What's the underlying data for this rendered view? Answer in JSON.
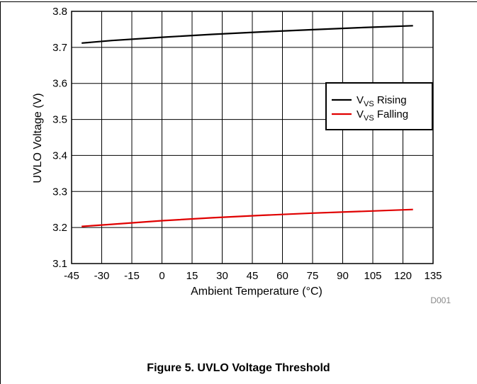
{
  "chart_data": {
    "type": "line",
    "xlabel": "Ambient Temperature (°C)",
    "ylabel": "UVLO Voltage (V)",
    "xlim": [
      -45,
      135
    ],
    "ylim": [
      3.1,
      3.8
    ],
    "xticks": [
      -45,
      -30,
      -15,
      0,
      15,
      30,
      45,
      60,
      75,
      90,
      105,
      120,
      135
    ],
    "yticks": [
      3.1,
      3.2,
      3.3,
      3.4,
      3.5,
      3.6,
      3.7,
      3.8
    ],
    "grid": true,
    "legend_position": "right",
    "series": [
      {
        "name_main": "V",
        "name_sub": "VS",
        "name_rest": " Rising",
        "color": "#000000",
        "x": [
          -40,
          -25,
          0,
          25,
          50,
          75,
          100,
          125
        ],
        "y": [
          3.712,
          3.719,
          3.728,
          3.736,
          3.743,
          3.749,
          3.755,
          3.76
        ]
      },
      {
        "name_main": "V",
        "name_sub": "VS",
        "name_rest": " Falling",
        "color": "#e00000",
        "x": [
          -40,
          -25,
          0,
          25,
          50,
          75,
          100,
          125
        ],
        "y": [
          3.203,
          3.209,
          3.219,
          3.227,
          3.234,
          3.24,
          3.245,
          3.25
        ]
      }
    ],
    "figure_id": "D001"
  },
  "caption": "Figure 5. UVLO Voltage Threshold"
}
